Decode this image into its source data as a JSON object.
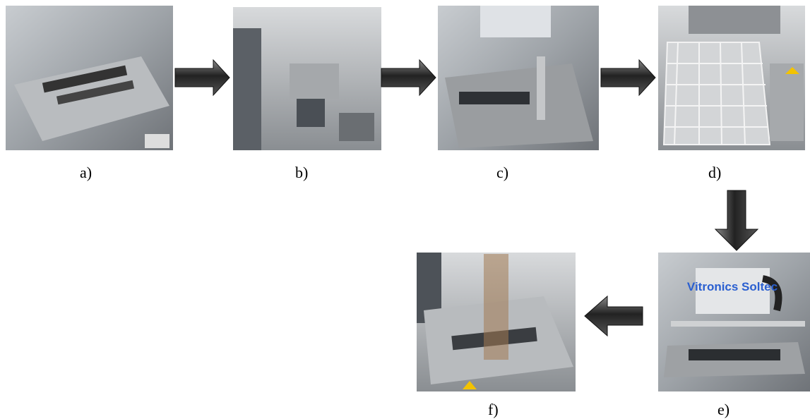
{
  "panels": [
    {
      "label": "a)"
    },
    {
      "label": "b)"
    },
    {
      "label": "c)"
    },
    {
      "label": "d)"
    },
    {
      "label": "e)",
      "photo_text": "Vitronics Soltec"
    },
    {
      "label": "f)"
    }
  ]
}
